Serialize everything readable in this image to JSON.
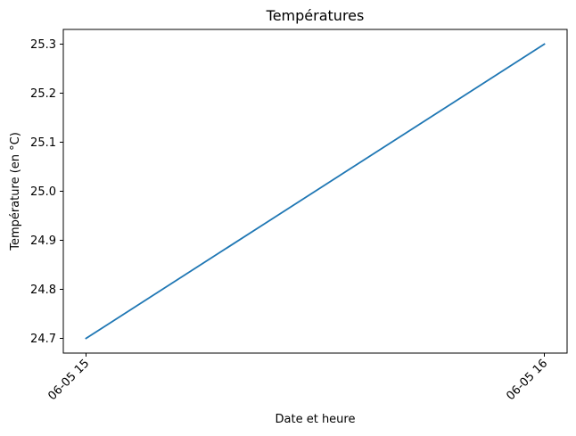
{
  "chart_data": {
    "type": "line",
    "title": "Températures",
    "xlabel": "Date et heure",
    "ylabel": "Température (en °C)",
    "x": [
      "06-05 15",
      "06-05 16"
    ],
    "series": [
      {
        "values": [
          24.7,
          25.3
        ],
        "color": "#1f77b4"
      }
    ],
    "xticks": [
      "06-05 15",
      "06-05 16"
    ],
    "yticks": [
      "24.7",
      "24.8",
      "24.9",
      "25.0",
      "25.1",
      "25.2",
      "25.3"
    ],
    "ylim": [
      24.67,
      25.33
    ],
    "grid": false
  }
}
